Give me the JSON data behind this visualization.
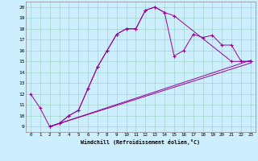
{
  "xlabel": "Windchill (Refroidissement éolien,°C)",
  "bg_color": "#cceeff",
  "line_color": "#990099",
  "grid_color": "#99ccbb",
  "xlim": [
    -0.5,
    23.5
  ],
  "ylim": [
    8.5,
    20.5
  ],
  "xticks": [
    0,
    1,
    2,
    3,
    4,
    5,
    6,
    7,
    8,
    9,
    10,
    11,
    12,
    13,
    14,
    15,
    16,
    17,
    18,
    19,
    20,
    21,
    22,
    23
  ],
  "yticks": [
    9,
    10,
    11,
    12,
    13,
    14,
    15,
    16,
    17,
    18,
    19,
    20
  ],
  "line1": {
    "x": [
      0,
      1,
      2,
      3,
      4,
      5,
      6,
      7,
      8,
      9,
      10,
      11,
      12,
      13,
      14,
      15,
      21,
      22,
      23
    ],
    "y": [
      12,
      10.7,
      9,
      9.3,
      10,
      10.5,
      12.5,
      14.5,
      16,
      17.5,
      18,
      18,
      19.7,
      20,
      19.5,
      19.2,
      15,
      15,
      15
    ]
  },
  "line2": {
    "x": [
      2,
      3,
      4,
      5,
      6,
      7,
      8,
      9,
      10,
      11,
      12,
      13,
      14,
      15,
      16,
      17,
      18,
      19,
      20,
      21,
      22,
      23
    ],
    "y": [
      9,
      9.3,
      10,
      10.5,
      12.5,
      14.5,
      16,
      17.5,
      18,
      18,
      19.7,
      20,
      19.5,
      15.5,
      16,
      17.5,
      17.2,
      17.4,
      16.5,
      16.5,
      15,
      15
    ]
  },
  "line3": {
    "x": [
      2,
      23
    ],
    "y": [
      9,
      15.1
    ]
  },
  "line4": {
    "x": [
      2,
      23
    ],
    "y": [
      9,
      14.85
    ]
  }
}
